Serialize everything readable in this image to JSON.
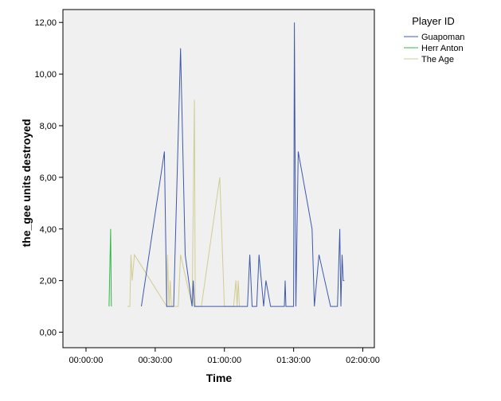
{
  "chart_data": {
    "type": "line",
    "xlabel": "Time",
    "ylabel": "the_gee units destroyed",
    "xlim": [
      "-00:10:00",
      "02:05:00"
    ],
    "ylim": [
      -0.6,
      12.5
    ],
    "x_ticks": [
      "00:00:00",
      "00:30:00",
      "01:00:00",
      "01:30:00",
      "02:00:00"
    ],
    "y_ticks": [
      "0,00",
      "2,00",
      "4,00",
      "6,00",
      "8,00",
      "10,00",
      "12,00"
    ],
    "y_tick_values": [
      0,
      2,
      4,
      6,
      8,
      10,
      12
    ],
    "grid": false,
    "legend_position": "top-right",
    "legend_title": "Player ID",
    "colors": {
      "plot_background": "#f0f0f0",
      "Guapoman": "#3e58ac",
      "Herr Anton": "#2eb848",
      "The Age": "#d2cc92"
    },
    "series": [
      {
        "name": "Guapoman",
        "x": [
          "00:24:00",
          "00:34:00",
          "00:35:00",
          "00:38:00",
          "00:41:00",
          "00:43:00",
          "00:46:00",
          "00:46:30",
          "00:47:00",
          "00:47:30",
          "00:50:00",
          "00:55:00",
          "01:00:00",
          "01:05:00",
          "01:10:00",
          "01:11:00",
          "01:12:00",
          "01:14:00",
          "01:15:00",
          "01:17:00",
          "01:18:00",
          "01:20:00",
          "01:21:00",
          "01:25:00",
          "01:26:00",
          "01:26:20",
          "01:26:40",
          "01:28:00",
          "01:29:00",
          "01:30:00",
          "01:30:20",
          "01:31:00",
          "01:32:00",
          "01:38:00",
          "01:39:00",
          "01:41:00",
          "01:46:00",
          "01:49:00",
          "01:50:00",
          "01:50:30",
          "01:51:00",
          "01:51:30",
          "01:52:00"
        ],
        "y": [
          1,
          7,
          1,
          1,
          11,
          3,
          1,
          2,
          1,
          1,
          1,
          1,
          1,
          1,
          1,
          3,
          1,
          1,
          3,
          1,
          2,
          1,
          1,
          1,
          1,
          2,
          1,
          1,
          1,
          1,
          12,
          1,
          7,
          4,
          1,
          3,
          1,
          1,
          4,
          1,
          3,
          2,
          2
        ]
      },
      {
        "name": "Herr Anton",
        "x": [
          "00:10:00",
          "00:10:40",
          "00:11:00"
        ],
        "y": [
          1,
          4,
          1
        ]
      },
      {
        "name": "The Age",
        "x": [
          "00:18:00",
          "00:19:00",
          "00:19:30",
          "00:20:00",
          "00:21:00",
          "00:35:00",
          "00:35:20",
          "00:36:00",
          "00:36:30",
          "00:37:00",
          "00:38:00",
          "00:40:00",
          "00:41:00",
          "00:46:00",
          "00:47:00",
          "00:47:20",
          "00:48:00",
          "00:50:00",
          "00:58:00",
          "01:00:00",
          "01:04:00",
          "01:05:00",
          "01:05:30",
          "01:06:00",
          "01:06:30"
        ],
        "y": [
          1,
          1,
          3,
          2,
          3,
          1,
          3,
          1,
          2,
          1,
          1,
          1,
          3,
          1,
          9,
          1,
          1,
          1,
          6,
          1,
          1,
          2,
          1,
          2,
          1
        ]
      }
    ]
  }
}
